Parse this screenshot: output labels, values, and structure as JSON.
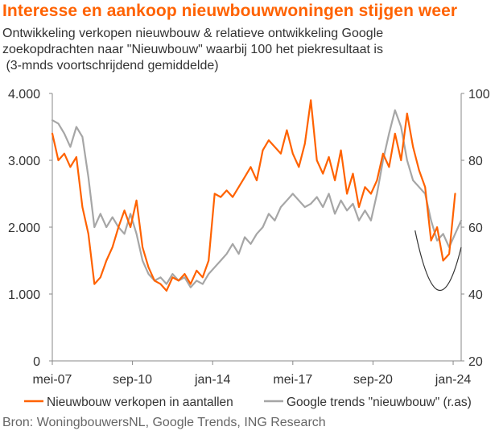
{
  "header": {
    "title": "Interesse en aankoop nieuwbouwwoningen  stijgen weer",
    "subtitle_lines": [
      "Ontwikkeling verkopen nieuwbouw & relatieve ontwikkeling Google",
      "zoekopdrachten naar \"Nieuwbouw\" waarbij 100 het piekresultaat is",
      " (3-mnds voortschrijdend gemiddelde)"
    ]
  },
  "footer": {
    "source": "Bron: WoningbouwersNL, Google Trends, ING Research"
  },
  "colors": {
    "sales": "#ff6200",
    "google": "#a6a6a6",
    "trend": "#333333",
    "axis": "#888888",
    "text": "#333333"
  },
  "chart_data": {
    "type": "line",
    "x_tick_labels": [
      "mei-07",
      "sep-10",
      "jan-14",
      "mei-17",
      "sep-20",
      "jan-24"
    ],
    "x_ticks": [
      "2007-05",
      "2010-09",
      "2014-01",
      "2017-05",
      "2020-09",
      "2024-01"
    ],
    "xlim": [
      "2007-05",
      "2024-05"
    ],
    "y_left": {
      "ticks": [
        "0",
        "1.000",
        "2.000",
        "3.000",
        "4.000"
      ],
      "ylim": [
        0,
        4000
      ]
    },
    "y_right": {
      "ticks": [
        "20",
        "40",
        "60",
        "80",
        "100"
      ],
      "ylim": [
        20,
        100
      ],
      "label_suffix": "(r.as)"
    },
    "legend_position": "bottom",
    "series": [
      {
        "name": "Nieuwbouw verkopen in aantallen",
        "axis": "left",
        "x": [
          "2007-05",
          "2007-08",
          "2007-11",
          "2008-02",
          "2008-05",
          "2008-08",
          "2008-11",
          "2009-02",
          "2009-05",
          "2009-08",
          "2009-11",
          "2010-02",
          "2010-05",
          "2010-08",
          "2010-11",
          "2011-02",
          "2011-05",
          "2011-08",
          "2011-11",
          "2012-02",
          "2012-05",
          "2012-08",
          "2012-11",
          "2013-02",
          "2013-05",
          "2013-08",
          "2013-11",
          "2014-02",
          "2014-05",
          "2014-08",
          "2014-11",
          "2015-02",
          "2015-05",
          "2015-08",
          "2015-11",
          "2016-02",
          "2016-05",
          "2016-08",
          "2016-11",
          "2017-02",
          "2017-05",
          "2017-08",
          "2017-11",
          "2018-02",
          "2018-05",
          "2018-08",
          "2018-11",
          "2019-02",
          "2019-05",
          "2019-08",
          "2019-11",
          "2020-02",
          "2020-05",
          "2020-08",
          "2020-11",
          "2021-02",
          "2021-05",
          "2021-08",
          "2021-11",
          "2022-02",
          "2022-05",
          "2022-08",
          "2022-11",
          "2023-02",
          "2023-05",
          "2023-08",
          "2023-11",
          "2024-02"
        ],
        "values": [
          3400,
          3000,
          3100,
          2900,
          3050,
          2300,
          1900,
          1150,
          1250,
          1500,
          1700,
          2000,
          2250,
          2000,
          2400,
          1700,
          1400,
          1200,
          1150,
          1050,
          1250,
          1200,
          1300,
          1150,
          1350,
          1250,
          1500,
          2500,
          2450,
          2550,
          2450,
          2600,
          2750,
          2900,
          2700,
          3150,
          3300,
          3200,
          3100,
          3450,
          3100,
          2900,
          3250,
          3900,
          3000,
          2800,
          3050,
          2700,
          3150,
          2500,
          2800,
          2300,
          2600,
          2500,
          2700,
          3100,
          2900,
          3400,
          3000,
          3700,
          3200,
          2850,
          2600,
          1800,
          2000,
          1500,
          1600,
          2500
        ],
        "color_key": "sales"
      },
      {
        "name": "Google trends \"nieuwbouw\"",
        "axis": "right",
        "x": [
          "2007-05",
          "2007-08",
          "2007-11",
          "2008-02",
          "2008-05",
          "2008-08",
          "2008-11",
          "2009-02",
          "2009-05",
          "2009-08",
          "2009-11",
          "2010-02",
          "2010-05",
          "2010-08",
          "2010-11",
          "2011-02",
          "2011-05",
          "2011-08",
          "2011-11",
          "2012-02",
          "2012-05",
          "2012-08",
          "2012-11",
          "2013-02",
          "2013-05",
          "2013-08",
          "2013-11",
          "2014-02",
          "2014-05",
          "2014-08",
          "2014-11",
          "2015-02",
          "2015-05",
          "2015-08",
          "2015-11",
          "2016-02",
          "2016-05",
          "2016-08",
          "2016-11",
          "2017-02",
          "2017-05",
          "2017-08",
          "2017-11",
          "2018-02",
          "2018-05",
          "2018-08",
          "2018-11",
          "2019-02",
          "2019-05",
          "2019-08",
          "2019-11",
          "2020-02",
          "2020-05",
          "2020-08",
          "2020-11",
          "2021-02",
          "2021-05",
          "2021-08",
          "2021-11",
          "2022-02",
          "2022-05",
          "2022-08",
          "2022-11",
          "2023-02",
          "2023-05",
          "2023-08",
          "2023-11",
          "2024-02",
          "2024-05"
        ],
        "values": [
          92,
          91,
          88,
          84,
          90,
          87,
          75,
          60,
          64,
          60,
          63,
          60,
          58,
          64,
          58,
          50,
          46,
          44,
          45,
          43,
          46,
          44,
          45,
          42,
          44,
          43,
          46,
          48,
          50,
          52,
          55,
          52,
          57,
          55,
          58,
          60,
          64,
          62,
          66,
          68,
          70,
          68,
          66,
          67,
          69,
          66,
          70,
          64,
          68,
          65,
          67,
          62,
          65,
          62,
          70,
          80,
          88,
          95,
          90,
          80,
          74,
          72,
          70,
          62,
          56,
          58,
          54,
          58,
          62
        ],
        "color_key": "google"
      }
    ],
    "annotation": {
      "type": "curve",
      "description": "U-shaped trend curve",
      "from": "2022-06",
      "to": "2024-05"
    }
  },
  "legend": {
    "sales": "Nieuwbouw verkopen in aantallen",
    "google": "Google trends \"nieuwbouw\" (r.as)"
  }
}
